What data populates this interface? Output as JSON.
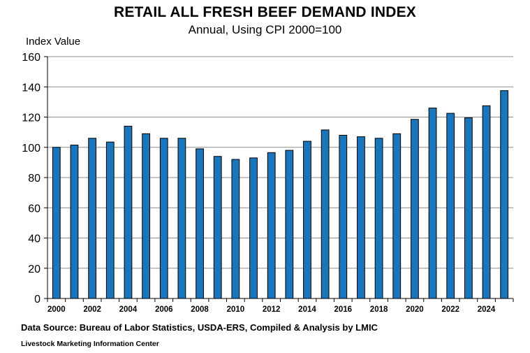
{
  "chart_data": {
    "type": "bar",
    "title": "RETAIL ALL FRESH BEEF DEMAND INDEX",
    "subtitle": "Annual, Using CPI 2000=100",
    "ylabel": "Index Value",
    "xlabel": "",
    "ylim": [
      0,
      160
    ],
    "ytick_labels": [
      "0",
      "20",
      "40",
      "60",
      "80",
      "100",
      "120",
      "140",
      "160"
    ],
    "categories": [
      "2000",
      "2001",
      "2002",
      "2003",
      "2004",
      "2005",
      "2006",
      "2007",
      "2008",
      "2009",
      "2010",
      "2011",
      "2012",
      "2013",
      "2014",
      "2015",
      "2016",
      "2017",
      "2018",
      "2019",
      "2020",
      "2021",
      "2022",
      "2023",
      "2024",
      "2025"
    ],
    "values": [
      100,
      101.5,
      106,
      103.5,
      114,
      109,
      106,
      106,
      99,
      94,
      92,
      93,
      96.5,
      98,
      104,
      111.5,
      108,
      107,
      106,
      109,
      118.5,
      126,
      122.5,
      119.5,
      127.5,
      137.5
    ],
    "xtick_labels": [
      "2000",
      "2002",
      "2004",
      "2006",
      "2008",
      "2010",
      "2012",
      "2014",
      "2016",
      "2018",
      "2020",
      "2022",
      "2024"
    ],
    "grid": true,
    "bar_color": "#1b75bb",
    "bar_edge_color": "#000000",
    "legend": "none"
  },
  "source_note": "Data Source:  Bureau of Labor Statistics, USDA-ERS, Compiled & Analysis by LMIC",
  "credit_note": "Livestock Marketing Information Center"
}
